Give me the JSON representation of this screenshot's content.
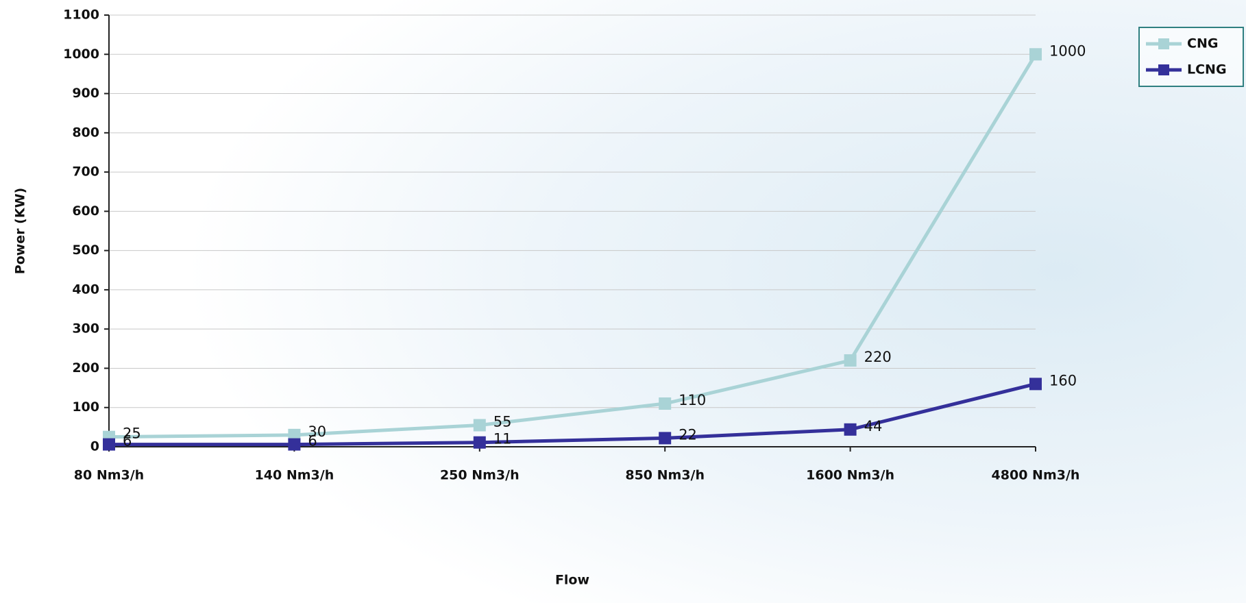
{
  "chart_data": {
    "type": "line",
    "x_label": "Flow",
    "y_label": "Power (KW)",
    "categories": [
      "80 Nm3/h",
      "140 Nm3/h",
      "250 Nm3/h",
      "850 Nm3/h",
      "1600 Nm3/h",
      "4800 Nm3/h"
    ],
    "series": [
      {
        "name": "CNG",
        "color": "#a9d3d6",
        "values": [
          25,
          30,
          55,
          110,
          220,
          1000
        ]
      },
      {
        "name": "LCNG",
        "color": "#34309a",
        "values": [
          6,
          6,
          11,
          22,
          44,
          160
        ]
      }
    ],
    "ylim": [
      0,
      1100
    ],
    "yticks": [
      0,
      100,
      200,
      300,
      400,
      500,
      600,
      700,
      800,
      900,
      1000,
      1100
    ],
    "grid": true,
    "legend": "top-right"
  }
}
